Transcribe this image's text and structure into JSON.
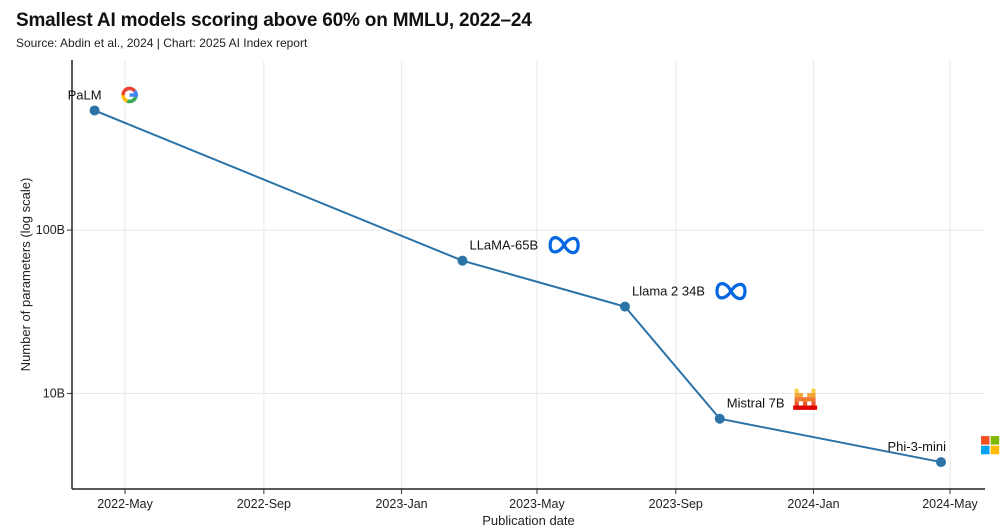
{
  "title": "Smallest AI models scoring above 60% on MMLU, 2022–24",
  "subtitle": "Source: Abdin et al., 2024 | Chart: 2025 AI Index report",
  "chart_data": {
    "type": "line",
    "xlabel": "Publication date",
    "ylabel": "Number of parameters (log scale)",
    "y_scale": "log",
    "x_range": [
      "2022-03-15",
      "2024-06-01"
    ],
    "y_range_billions": [
      2.6,
      1100
    ],
    "x_ticks": [
      {
        "date": "2022-05-01",
        "label": "2022-May"
      },
      {
        "date": "2022-09-01",
        "label": "2022-Sep"
      },
      {
        "date": "2023-01-01",
        "label": "2023-Jan"
      },
      {
        "date": "2023-05-01",
        "label": "2023-May"
      },
      {
        "date": "2023-09-01",
        "label": "2023-Sep"
      },
      {
        "date": "2024-01-01",
        "label": "2024-Jan"
      },
      {
        "date": "2024-05-01",
        "label": "2024-May"
      }
    ],
    "y_ticks": [
      {
        "value_billions": 10,
        "label": "10B"
      },
      {
        "value_billions": 100,
        "label": "100B"
      }
    ],
    "grid": true,
    "points": [
      {
        "label": "PaLM",
        "date": "2022-04-04",
        "params_billions": 540,
        "logo": "google-logo",
        "label_side": "left"
      },
      {
        "label": "LLaMA-65B",
        "date": "2023-02-24",
        "params_billions": 65,
        "logo": "meta-logo",
        "label_side": "right"
      },
      {
        "label": "Llama 2 34B",
        "date": "2023-07-18",
        "params_billions": 34,
        "logo": "meta-logo",
        "label_side": "right"
      },
      {
        "label": "Mistral 7B",
        "date": "2023-10-10",
        "params_billions": 7,
        "logo": "mistral-logo",
        "label_side": "right"
      },
      {
        "label": "Phi-3-mini",
        "date": "2024-04-23",
        "params_billions": 3.8,
        "logo": "microsoft-logo",
        "label_side": "left"
      }
    ],
    "colors": {
      "line": "#2c73a8",
      "marker": "#2c73a8",
      "grid": "#e9e9e9",
      "meta": "#0668e1",
      "google_blue": "#4285F4",
      "google_red": "#EA4335",
      "google_yellow": "#FBBC05",
      "google_green": "#34A853",
      "ms_red": "#F25022",
      "ms_green": "#7FBA00",
      "ms_blue": "#00A4EF",
      "ms_yellow": "#FFB900",
      "mistral_yellow": "#F7D046",
      "mistral_orange": "#F2A73B",
      "mistral_darkorange": "#EE792F",
      "mistral_red": "#EB5829",
      "mistral_deepred": "#E10500"
    }
  }
}
